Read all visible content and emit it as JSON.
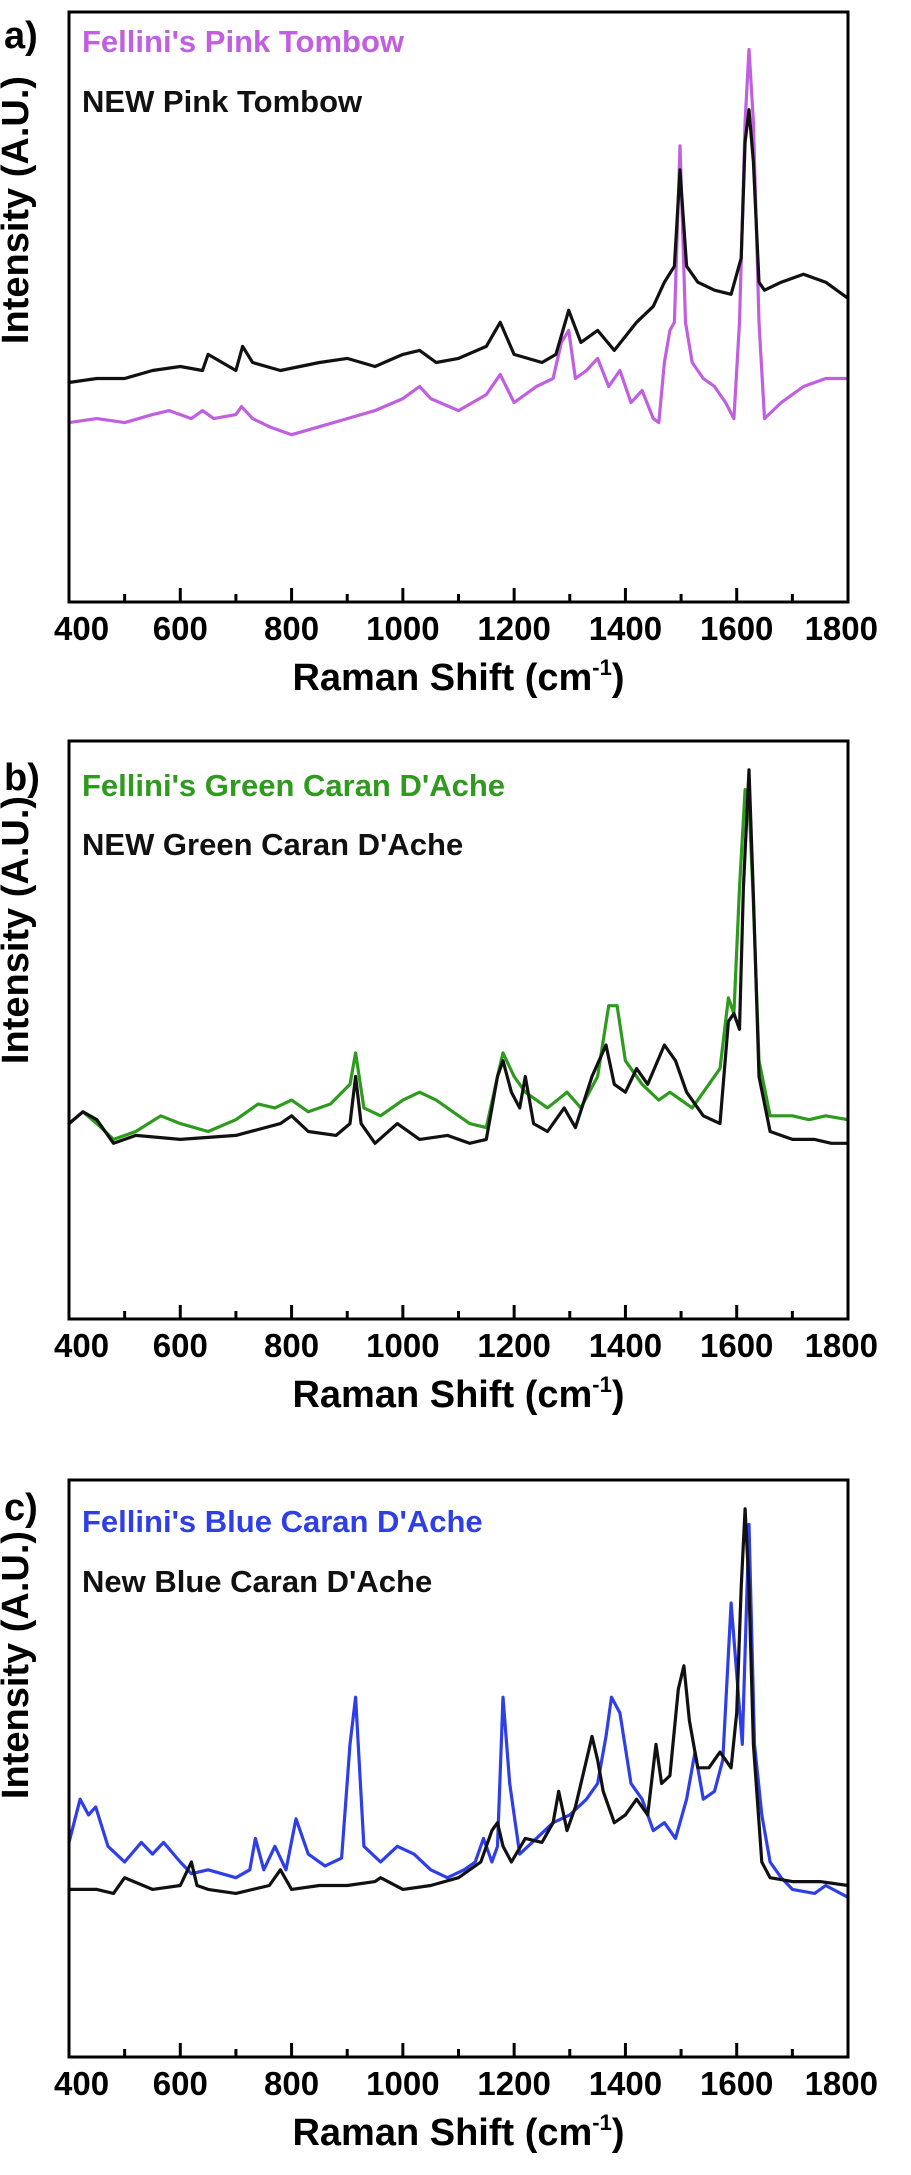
{
  "chart_data": [
    {
      "type": "line",
      "panel_label": "a)",
      "xlabel": "Raman Shift (cm",
      "xlabel_sup": "-1",
      "xlabel_close": ")",
      "ylabel": "Intensity (A.U.)",
      "xlim": [
        400,
        1800
      ],
      "ylim": [
        0,
        100
      ],
      "grid": false,
      "legend_position": "top-left",
      "x_ticks": [
        400,
        600,
        800,
        1000,
        1200,
        1400,
        1600,
        1800
      ],
      "x_tick_labels": [
        "400",
        "600",
        "800",
        "1000",
        "1200",
        "1400",
        "1600",
        "1800"
      ],
      "series": [
        {
          "name": "Fellini's Pink Tombow",
          "color": "#c060e0",
          "x": [
            400,
            450,
            500,
            550,
            580,
            620,
            640,
            660,
            700,
            710,
            730,
            760,
            800,
            850,
            900,
            950,
            1000,
            1030,
            1050,
            1100,
            1150,
            1175,
            1200,
            1240,
            1270,
            1285,
            1298,
            1310,
            1330,
            1350,
            1370,
            1390,
            1410,
            1430,
            1450,
            1460,
            1470,
            1480,
            1488,
            1498,
            1508,
            1520,
            1540,
            1560,
            1580,
            1595,
            1605,
            1615,
            1622,
            1630,
            1640,
            1650,
            1680,
            1720,
            1760,
            1800
          ],
          "y": [
            5,
            6,
            5,
            7,
            8,
            6,
            8,
            6,
            7,
            9,
            6,
            4,
            2,
            4,
            6,
            8,
            11,
            14,
            11,
            8,
            12,
            17,
            10,
            14,
            16,
            25,
            28,
            16,
            18,
            21,
            14,
            18,
            10,
            13,
            6,
            5,
            20,
            28,
            30,
            74,
            30,
            20,
            16,
            14,
            10,
            6,
            30,
            80,
            98,
            80,
            30,
            6,
            10,
            14,
            16,
            16
          ]
        },
        {
          "name": "NEW Pink Tombow",
          "color": "#111111",
          "x": [
            400,
            450,
            500,
            550,
            600,
            640,
            650,
            700,
            712,
            730,
            780,
            850,
            900,
            950,
            1000,
            1030,
            1060,
            1100,
            1150,
            1175,
            1200,
            1250,
            1275,
            1298,
            1320,
            1350,
            1380,
            1420,
            1450,
            1470,
            1488,
            1498,
            1510,
            1530,
            1560,
            1590,
            1608,
            1615,
            1622,
            1630,
            1640,
            1650,
            1680,
            1720,
            1760,
            1800
          ],
          "y": [
            15,
            16,
            16,
            18,
            19,
            18,
            22,
            18,
            24,
            20,
            18,
            20,
            21,
            19,
            22,
            23,
            20,
            21,
            24,
            30,
            22,
            20,
            22,
            33,
            25,
            28,
            23,
            30,
            34,
            40,
            44,
            68,
            44,
            40,
            38,
            37,
            46,
            75,
            83,
            70,
            40,
            38,
            40,
            42,
            40,
            36
          ]
        }
      ]
    },
    {
      "type": "line",
      "panel_label": "b)",
      "xlabel": "Raman Shift (cm",
      "xlabel_sup": "-1",
      "xlabel_close": ")",
      "ylabel": "Intensity (A.U.)",
      "xlim": [
        400,
        1800
      ],
      "ylim": [
        0,
        100
      ],
      "grid": false,
      "legend_position": "top-left",
      "x_ticks": [
        400,
        600,
        800,
        1000,
        1200,
        1400,
        1600,
        1800
      ],
      "x_tick_labels": [
        "400",
        "600",
        "800",
        "1000",
        "1200",
        "1400",
        "1600",
        "1800"
      ],
      "series": [
        {
          "name": "Fellini's Green Caran D'Ache",
          "color": "#2e9a1e",
          "x": [
            400,
            425,
            450,
            480,
            520,
            565,
            600,
            650,
            700,
            740,
            770,
            800,
            830,
            870,
            905,
            915,
            930,
            960,
            1000,
            1030,
            1060,
            1090,
            1120,
            1150,
            1170,
            1180,
            1200,
            1220,
            1260,
            1295,
            1320,
            1350,
            1370,
            1385,
            1400,
            1430,
            1460,
            1480,
            1500,
            1520,
            1550,
            1570,
            1585,
            1595,
            1605,
            1615,
            1622,
            1630,
            1640,
            1660,
            1700,
            1730,
            1760,
            1800
          ],
          "y": [
            10,
            13,
            10,
            6,
            8,
            12,
            10,
            8,
            11,
            15,
            14,
            16,
            13,
            15,
            20,
            28,
            14,
            12,
            16,
            18,
            16,
            13,
            10,
            9,
            22,
            28,
            22,
            18,
            14,
            18,
            14,
            22,
            40,
            40,
            26,
            20,
            16,
            18,
            16,
            14,
            20,
            24,
            42,
            38,
            70,
            95,
            92,
            66,
            26,
            12,
            12,
            11,
            12,
            11
          ]
        },
        {
          "name": "NEW Green Caran D'Ache",
          "color": "#111111",
          "x": [
            400,
            425,
            450,
            480,
            520,
            600,
            700,
            780,
            800,
            830,
            880,
            905,
            915,
            925,
            950,
            990,
            1030,
            1080,
            1120,
            1150,
            1170,
            1180,
            1195,
            1210,
            1220,
            1235,
            1260,
            1290,
            1310,
            1340,
            1365,
            1380,
            1400,
            1420,
            1440,
            1470,
            1490,
            1510,
            1540,
            1570,
            1585,
            1595,
            1605,
            1612,
            1622,
            1630,
            1640,
            1660,
            1700,
            1740,
            1770,
            1800
          ],
          "y": [
            10,
            13,
            11,
            5,
            7,
            6,
            7,
            10,
            12,
            8,
            7,
            10,
            22,
            10,
            5,
            10,
            6,
            7,
            5,
            6,
            22,
            26,
            18,
            14,
            22,
            10,
            8,
            14,
            9,
            22,
            30,
            20,
            18,
            24,
            20,
            30,
            26,
            18,
            12,
            10,
            36,
            38,
            34,
            70,
            100,
            68,
            22,
            8,
            6,
            6,
            5,
            5
          ]
        }
      ]
    },
    {
      "type": "line",
      "panel_label": "c)",
      "xlabel": "Raman Shift (cm",
      "xlabel_sup": "-1",
      "xlabel_close": ")",
      "ylabel": "Intensity (A.U.)",
      "xlim": [
        400,
        1800
      ],
      "ylim": [
        0,
        100
      ],
      "grid": false,
      "legend_position": "top-left",
      "x_ticks": [
        400,
        600,
        800,
        1000,
        1200,
        1400,
        1600,
        1800
      ],
      "x_tick_labels": [
        "400",
        "600",
        "800",
        "1000",
        "1200",
        "1400",
        "1600",
        "1800"
      ],
      "series": [
        {
          "name": "Fellini's Blue Caran D'Ache",
          "color": "#2f3fe8",
          "x": [
            400,
            420,
            435,
            448,
            470,
            500,
            530,
            550,
            570,
            600,
            620,
            650,
            700,
            725,
            735,
            750,
            770,
            790,
            808,
            830,
            860,
            890,
            905,
            915,
            930,
            960,
            990,
            1020,
            1050,
            1080,
            1110,
            1130,
            1145,
            1160,
            1170,
            1180,
            1192,
            1210,
            1240,
            1270,
            1300,
            1330,
            1350,
            1365,
            1375,
            1390,
            1410,
            1430,
            1450,
            1470,
            1490,
            1510,
            1525,
            1540,
            1560,
            1575,
            1590,
            1600,
            1610,
            1622,
            1632,
            1645,
            1660,
            1680,
            1700,
            1740,
            1760,
            1800
          ],
          "y": [
            15,
            26,
            22,
            24,
            14,
            10,
            15,
            12,
            15,
            10,
            7,
            8,
            6,
            8,
            16,
            8,
            14,
            8,
            21,
            12,
            9,
            11,
            40,
            52,
            14,
            10,
            14,
            12,
            8,
            6,
            8,
            10,
            16,
            10,
            14,
            52,
            30,
            12,
            16,
            20,
            22,
            26,
            30,
            42,
            52,
            48,
            30,
            26,
            18,
            20,
            16,
            26,
            38,
            26,
            28,
            36,
            76,
            58,
            40,
            96,
            40,
            22,
            10,
            6,
            3,
            2,
            4,
            1
          ]
        },
        {
          "name": "New Blue Caran D'Ache",
          "color": "#111111",
          "x": [
            400,
            450,
            480,
            500,
            550,
            600,
            620,
            630,
            650,
            700,
            760,
            780,
            800,
            850,
            900,
            950,
            960,
            1000,
            1050,
            1100,
            1140,
            1160,
            1170,
            1180,
            1195,
            1220,
            1250,
            1270,
            1280,
            1295,
            1310,
            1330,
            1340,
            1350,
            1360,
            1380,
            1400,
            1420,
            1440,
            1455,
            1465,
            1480,
            1495,
            1505,
            1515,
            1530,
            1550,
            1570,
            1590,
            1600,
            1608,
            1615,
            1622,
            1630,
            1645,
            1660,
            1700,
            1750,
            1800
          ],
          "y": [
            3,
            3,
            2,
            6,
            3,
            4,
            10,
            4,
            3,
            2,
            4,
            8,
            3,
            4,
            4,
            5,
            6,
            3,
            4,
            6,
            10,
            18,
            20,
            14,
            10,
            16,
            15,
            20,
            28,
            18,
            24,
            36,
            42,
            36,
            28,
            20,
            22,
            26,
            22,
            40,
            30,
            32,
            54,
            60,
            46,
            34,
            34,
            38,
            34,
            48,
            80,
            100,
            80,
            40,
            10,
            6,
            5,
            5,
            4
          ]
        }
      ]
    }
  ]
}
